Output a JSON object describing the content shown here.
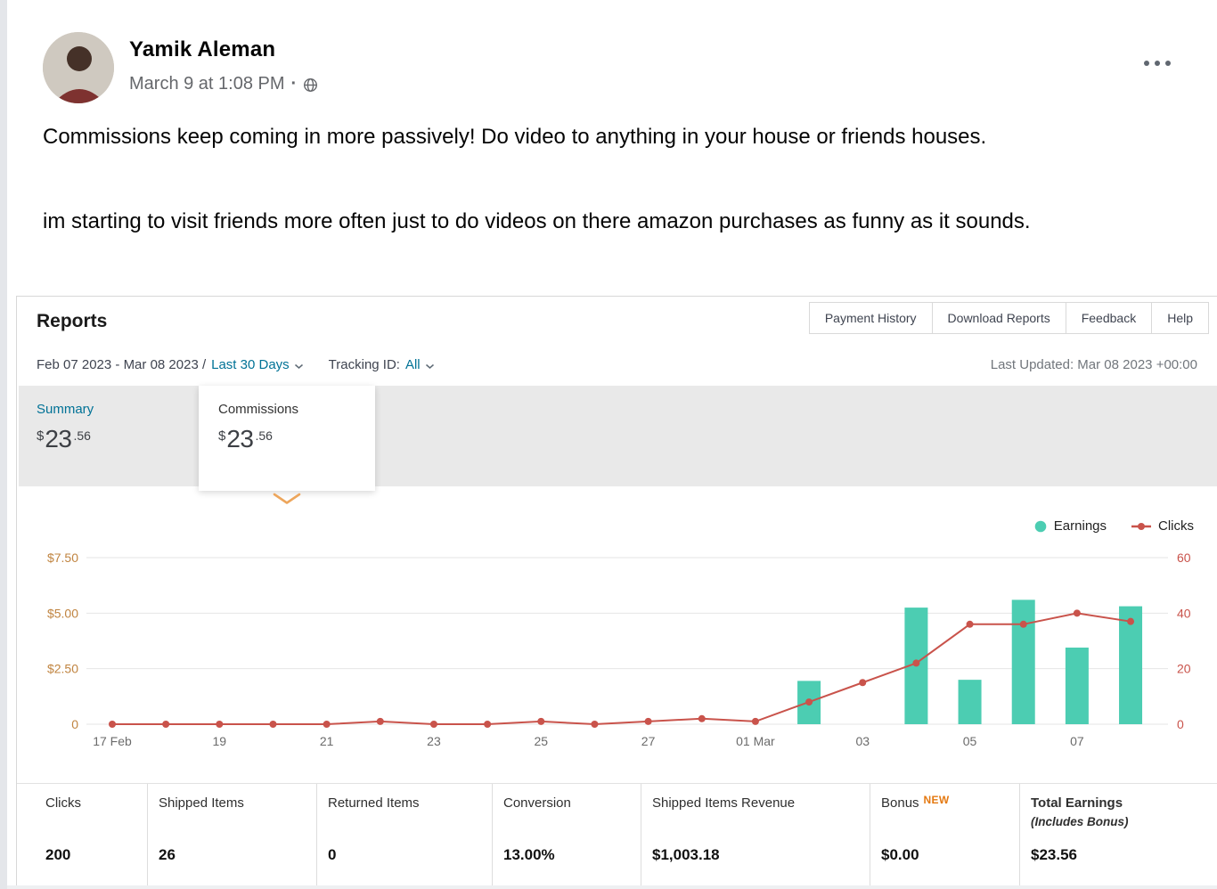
{
  "post": {
    "author": "Yamik Aleman",
    "timestamp": "March 9 at 1:08 PM",
    "meta_separator": "·",
    "paragraphs": [
      "Commissions keep coming in more passively! Do video to anything in your house or friends houses.",
      "im starting to visit friends more often just to do videos on there amazon purchases as funny as it sounds."
    ]
  },
  "icons": {
    "privacy": "globe-icon",
    "post_menu": "ellipsis-icon",
    "dropdowns": "chevron-down-icon",
    "tab_pointer": "chevron-down-icon"
  },
  "reports": {
    "title": "Reports",
    "nav_buttons": [
      "Payment History",
      "Download Reports",
      "Feedback",
      "Help"
    ],
    "date_range": "Feb 07 2023 - Mar 08 2023 /",
    "range_preset": "Last 30 Days",
    "tracking_label": "Tracking ID:",
    "tracking_value": "All",
    "last_updated": "Last Updated: Mar 08 2023 +00:00",
    "tabs": [
      {
        "label": "Summary",
        "currency": "$",
        "dollars": "23",
        "cents": ".56"
      },
      {
        "label": "Commissions",
        "currency": "$",
        "dollars": "23",
        "cents": ".56"
      }
    ]
  },
  "chart_data": {
    "type": "combo",
    "x": [
      "17 Feb",
      "18 Feb",
      "19 Feb",
      "20 Feb",
      "21 Feb",
      "22 Feb",
      "23 Feb",
      "24 Feb",
      "25 Feb",
      "26 Feb",
      "27 Feb",
      "28 Feb",
      "01 Mar",
      "02 Mar",
      "03 Mar",
      "04 Mar",
      "05 Mar",
      "06 Mar",
      "07 Mar",
      "08 Mar"
    ],
    "x_tick_labels": [
      "17 Feb",
      "19",
      "21",
      "23",
      "25",
      "27",
      "01 Mar",
      "03",
      "05",
      "07"
    ],
    "series": [
      {
        "name": "Earnings",
        "type": "bar",
        "axis": "left",
        "color": "#4CCDB2",
        "values": [
          0,
          0,
          0,
          0,
          0,
          0,
          0,
          0,
          0,
          0,
          0,
          0,
          0,
          1.95,
          0,
          5.25,
          2.0,
          5.6,
          3.45,
          5.31
        ]
      },
      {
        "name": "Clicks",
        "type": "line",
        "axis": "right",
        "color": "#C9534B",
        "values": [
          0,
          0,
          0,
          0,
          0,
          1,
          0,
          0,
          1,
          0,
          1,
          2,
          1,
          8,
          15,
          22,
          36,
          36,
          40,
          37
        ]
      }
    ],
    "left_axis": {
      "ticks": [
        "$7.50",
        "$5.00",
        "$2.50",
        "0"
      ],
      "min": 0,
      "max": 7.5,
      "color": "#C08440"
    },
    "right_axis": {
      "ticks": [
        "60",
        "40",
        "20",
        "0"
      ],
      "min": 0,
      "max": 60,
      "color": "#C9534B"
    },
    "grid": true,
    "legend_position": "top-right"
  },
  "stats": {
    "columns": [
      {
        "label": "Clicks",
        "value": "200"
      },
      {
        "label": "Shipped Items",
        "value": "26"
      },
      {
        "label": "Returned Items",
        "value": "0"
      },
      {
        "label": "Conversion",
        "value": "13.00%"
      },
      {
        "label": "Shipped Items Revenue",
        "value": "$1,003.18"
      },
      {
        "label": "Bonus",
        "badge": "NEW",
        "value": "$0.00"
      },
      {
        "label": "Total Earnings",
        "sublabel": "(Includes Bonus)",
        "value": "$23.56"
      }
    ]
  },
  "colors": {
    "accent_teal": "#007296",
    "earnings": "#4CCDB2",
    "clicks": "#C9534B",
    "new_badge": "#E47911",
    "left_axis_labels": "#C08440",
    "right_axis_labels": "#C9534B",
    "tab_strip_bg": "#e9e9e9"
  }
}
